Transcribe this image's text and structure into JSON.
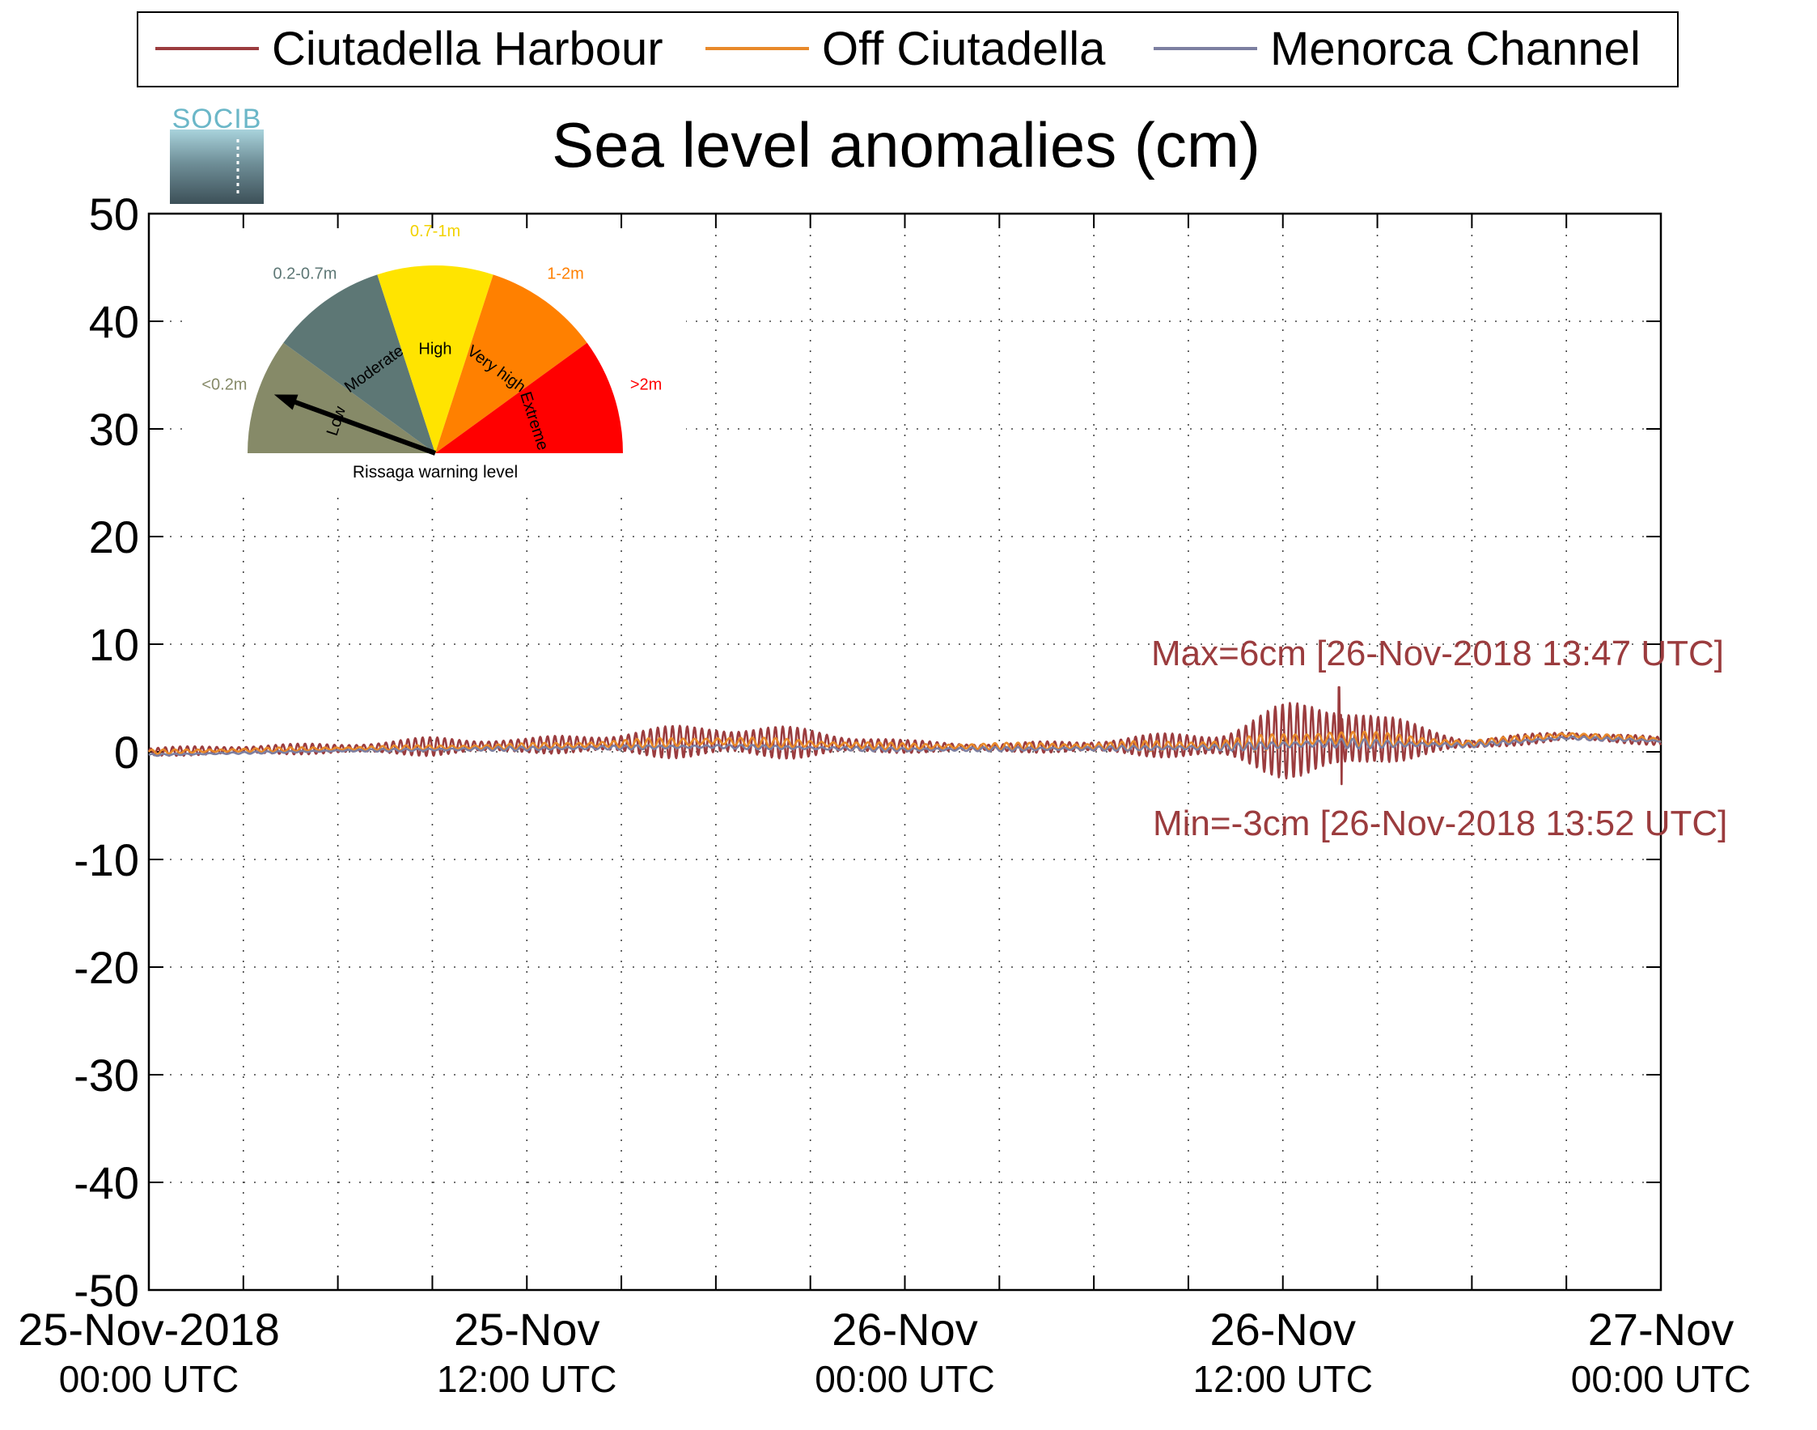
{
  "chart_data": {
    "type": "line",
    "title": "Sea level anomalies (cm)",
    "ylim": [
      -50,
      50
    ],
    "yticks": [
      50,
      40,
      30,
      20,
      10,
      0,
      -10,
      -20,
      -30,
      -40,
      -50
    ],
    "ytick_labels": [
      "50",
      "40",
      "30",
      "20",
      "10",
      "0",
      "-10",
      "-20",
      "-30",
      "-40",
      "-50"
    ],
    "xlim": [
      "2018-11-25 00:00",
      "2018-11-27 00:00"
    ],
    "x_major_ticks": [
      {
        "time": "2018-11-25 00:00",
        "label": "25-Nov-2018",
        "sublabel": "00:00 UTC"
      },
      {
        "time": "2018-11-25 12:00",
        "label": "25-Nov",
        "sublabel": "12:00 UTC"
      },
      {
        "time": "2018-11-26 00:00",
        "label": "26-Nov",
        "sublabel": "00:00 UTC"
      },
      {
        "time": "2018-11-26 12:00",
        "label": "26-Nov",
        "sublabel": "12:00 UTC"
      },
      {
        "time": "2018-11-27 00:00",
        "label": "27-Nov",
        "sublabel": "00:00 UTC"
      }
    ],
    "x_minor_tick_hours": 3,
    "grid": true,
    "legend_position": "top",
    "series": [
      {
        "name": "Ciutadella Harbour",
        "color": "#9b3c3e",
        "time": [
          "2018-11-25 00:00",
          "2018-11-25 03:00",
          "2018-11-25 06:00",
          "2018-11-25 09:00",
          "2018-11-25 12:00",
          "2018-11-25 15:00",
          "2018-11-25 18:00",
          "2018-11-25 21:00",
          "2018-11-26 00:00",
          "2018-11-26 03:00",
          "2018-11-26 06:00",
          "2018-11-26 08:00",
          "2018-11-26 10:00",
          "2018-11-26 11:00",
          "2018-11-26 12:00",
          "2018-11-26 13:00",
          "2018-11-26 13:47",
          "2018-11-26 15:00",
          "2018-11-26 17:00",
          "2018-11-26 18:00",
          "2018-11-26 21:00",
          "2018-11-27 00:00"
        ],
        "mean": [
          0.0,
          0.2,
          0.3,
          0.5,
          0.6,
          0.8,
          1.0,
          0.8,
          0.5,
          0.4,
          0.5,
          0.6,
          0.6,
          0.8,
          1.0,
          1.2,
          1.3,
          1.2,
          0.9,
          0.7,
          1.5,
          1.0
        ],
        "oscillation_amplitude": [
          0.4,
          0.5,
          0.5,
          0.9,
          0.7,
          1.2,
          1.8,
          1.4,
          0.6,
          0.4,
          0.7,
          1.1,
          1.5,
          2.5,
          3.5,
          4.3,
          4.6,
          2.4,
          1.2,
          0.5,
          0.5,
          0.4
        ],
        "max": {
          "value": 6,
          "time": "2018-11-26 13:47"
        },
        "min": {
          "value": -3,
          "time": "2018-11-26 13:52"
        }
      },
      {
        "name": "Off Ciutadella",
        "color": "#e8892a",
        "time": [
          "2018-11-25 00:00",
          "2018-11-25 06:00",
          "2018-11-25 12:00",
          "2018-11-25 18:00",
          "2018-11-26 00:00",
          "2018-11-26 06:00",
          "2018-11-26 10:00",
          "2018-11-26 13:30",
          "2018-11-26 18:00",
          "2018-11-26 21:00",
          "2018-11-27 00:00"
        ],
        "mean": [
          0.0,
          0.3,
          0.5,
          1.0,
          0.5,
          0.5,
          0.6,
          1.3,
          0.8,
          1.6,
          1.1
        ],
        "oscillation_amplitude": [
          0.2,
          0.2,
          0.3,
          0.5,
          0.3,
          0.4,
          0.6,
          0.9,
          0.3,
          0.3,
          0.2
        ]
      },
      {
        "name": "Menorca Channel",
        "color": "#7c7fa1",
        "time": [
          "2018-11-25 00:00",
          "2018-11-25 06:00",
          "2018-11-25 12:00",
          "2018-11-25 18:00",
          "2018-11-26 00:00",
          "2018-11-26 06:00",
          "2018-11-26 10:00",
          "2018-11-26 13:30",
          "2018-11-26 18:00",
          "2018-11-26 21:00",
          "2018-11-27 00:00"
        ],
        "mean": [
          -0.3,
          0.1,
          0.3,
          0.5,
          0.2,
          0.3,
          0.4,
          0.8,
          0.6,
          1.3,
          1.0
        ],
        "oscillation_amplitude": [
          0.1,
          0.1,
          0.2,
          0.2,
          0.2,
          0.2,
          0.3,
          0.5,
          0.2,
          0.2,
          0.1
        ]
      }
    ],
    "annotations": {
      "max_text": "Max=6cm [26-Nov-2018 13:47 UTC]",
      "min_text": "Min=-3cm [26-Nov-2018 13:52 UTC]",
      "color": "#9b3c3e"
    }
  },
  "logo": {
    "text": "SOCIB"
  },
  "gauge": {
    "caption": "Rissaga warning level",
    "needle_level": "Low",
    "sectors": [
      {
        "label": "Low",
        "range": "<0.2m",
        "color": "#868a68",
        "range_color": "#868a68"
      },
      {
        "label": "Moderate",
        "range": "0.2-0.7m",
        "color": "#5d7775",
        "range_color": "#5d7775"
      },
      {
        "label": "High",
        "range": "0.7-1m",
        "color": "#ffe400",
        "range_color": "#f2d200"
      },
      {
        "label": "Very high",
        "range": "1-2m",
        "color": "#ff8000",
        "range_color": "#ff8000"
      },
      {
        "label": "Extreme",
        "range": ">2m",
        "color": "#ff0000",
        "range_color": "#ff0000"
      }
    ]
  }
}
